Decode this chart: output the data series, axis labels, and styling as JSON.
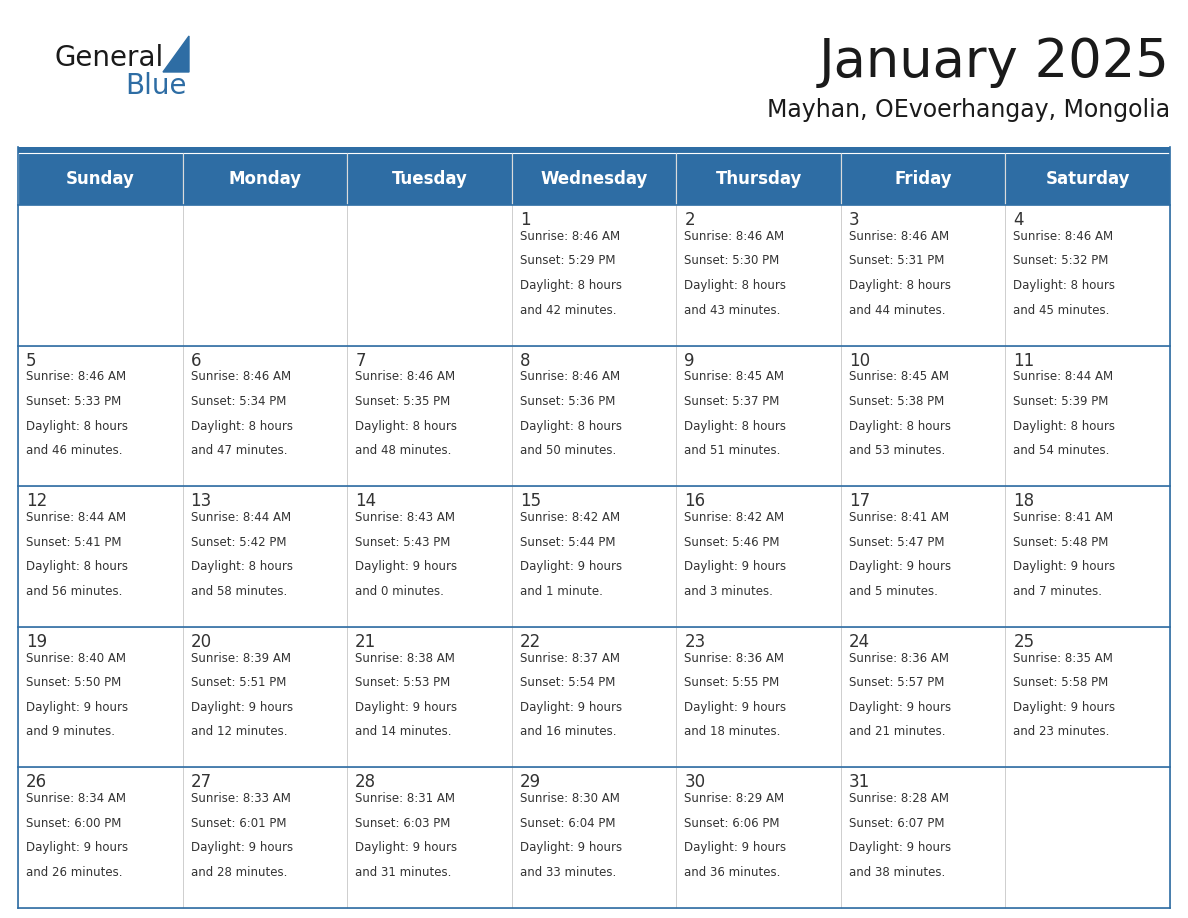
{
  "title": "January 2025",
  "subtitle": "Mayhan, OEvoerhangay, Mongolia",
  "days_of_week": [
    "Sunday",
    "Monday",
    "Tuesday",
    "Wednesday",
    "Thursday",
    "Friday",
    "Saturday"
  ],
  "header_bg": "#2E6DA4",
  "header_text": "#FFFFFF",
  "cell_bg": "#FFFFFF",
  "cell_border_color": "#AAAAAA",
  "row_separator_color": "#2E6DA4",
  "text_color": "#333333",
  "title_color": "#1a1a1a",
  "subtitle_color": "#1a1a1a",
  "logo_text_color": "#1a1a1a",
  "logo_blue_color": "#2E6DA4",
  "divider_color": "#2E6DA4",
  "calendar_data": [
    [
      {
        "day": "",
        "sunrise": "",
        "sunset": "",
        "daylight": ""
      },
      {
        "day": "",
        "sunrise": "",
        "sunset": "",
        "daylight": ""
      },
      {
        "day": "",
        "sunrise": "",
        "sunset": "",
        "daylight": ""
      },
      {
        "day": "1",
        "sunrise": "8:46 AM",
        "sunset": "5:29 PM",
        "daylight_line1": "Daylight: 8 hours",
        "daylight_line2": "and 42 minutes."
      },
      {
        "day": "2",
        "sunrise": "8:46 AM",
        "sunset": "5:30 PM",
        "daylight_line1": "Daylight: 8 hours",
        "daylight_line2": "and 43 minutes."
      },
      {
        "day": "3",
        "sunrise": "8:46 AM",
        "sunset": "5:31 PM",
        "daylight_line1": "Daylight: 8 hours",
        "daylight_line2": "and 44 minutes."
      },
      {
        "day": "4",
        "sunrise": "8:46 AM",
        "sunset": "5:32 PM",
        "daylight_line1": "Daylight: 8 hours",
        "daylight_line2": "and 45 minutes."
      }
    ],
    [
      {
        "day": "5",
        "sunrise": "8:46 AM",
        "sunset": "5:33 PM",
        "daylight_line1": "Daylight: 8 hours",
        "daylight_line2": "and 46 minutes."
      },
      {
        "day": "6",
        "sunrise": "8:46 AM",
        "sunset": "5:34 PM",
        "daylight_line1": "Daylight: 8 hours",
        "daylight_line2": "and 47 minutes."
      },
      {
        "day": "7",
        "sunrise": "8:46 AM",
        "sunset": "5:35 PM",
        "daylight_line1": "Daylight: 8 hours",
        "daylight_line2": "and 48 minutes."
      },
      {
        "day": "8",
        "sunrise": "8:46 AM",
        "sunset": "5:36 PM",
        "daylight_line1": "Daylight: 8 hours",
        "daylight_line2": "and 50 minutes."
      },
      {
        "day": "9",
        "sunrise": "8:45 AM",
        "sunset": "5:37 PM",
        "daylight_line1": "Daylight: 8 hours",
        "daylight_line2": "and 51 minutes."
      },
      {
        "day": "10",
        "sunrise": "8:45 AM",
        "sunset": "5:38 PM",
        "daylight_line1": "Daylight: 8 hours",
        "daylight_line2": "and 53 minutes."
      },
      {
        "day": "11",
        "sunrise": "8:44 AM",
        "sunset": "5:39 PM",
        "daylight_line1": "Daylight: 8 hours",
        "daylight_line2": "and 54 minutes."
      }
    ],
    [
      {
        "day": "12",
        "sunrise": "8:44 AM",
        "sunset": "5:41 PM",
        "daylight_line1": "Daylight: 8 hours",
        "daylight_line2": "and 56 minutes."
      },
      {
        "day": "13",
        "sunrise": "8:44 AM",
        "sunset": "5:42 PM",
        "daylight_line1": "Daylight: 8 hours",
        "daylight_line2": "and 58 minutes."
      },
      {
        "day": "14",
        "sunrise": "8:43 AM",
        "sunset": "5:43 PM",
        "daylight_line1": "Daylight: 9 hours",
        "daylight_line2": "and 0 minutes."
      },
      {
        "day": "15",
        "sunrise": "8:42 AM",
        "sunset": "5:44 PM",
        "daylight_line1": "Daylight: 9 hours",
        "daylight_line2": "and 1 minute."
      },
      {
        "day": "16",
        "sunrise": "8:42 AM",
        "sunset": "5:46 PM",
        "daylight_line1": "Daylight: 9 hours",
        "daylight_line2": "and 3 minutes."
      },
      {
        "day": "17",
        "sunrise": "8:41 AM",
        "sunset": "5:47 PM",
        "daylight_line1": "Daylight: 9 hours",
        "daylight_line2": "and 5 minutes."
      },
      {
        "day": "18",
        "sunrise": "8:41 AM",
        "sunset": "5:48 PM",
        "daylight_line1": "Daylight: 9 hours",
        "daylight_line2": "and 7 minutes."
      }
    ],
    [
      {
        "day": "19",
        "sunrise": "8:40 AM",
        "sunset": "5:50 PM",
        "daylight_line1": "Daylight: 9 hours",
        "daylight_line2": "and 9 minutes."
      },
      {
        "day": "20",
        "sunrise": "8:39 AM",
        "sunset": "5:51 PM",
        "daylight_line1": "Daylight: 9 hours",
        "daylight_line2": "and 12 minutes."
      },
      {
        "day": "21",
        "sunrise": "8:38 AM",
        "sunset": "5:53 PM",
        "daylight_line1": "Daylight: 9 hours",
        "daylight_line2": "and 14 minutes."
      },
      {
        "day": "22",
        "sunrise": "8:37 AM",
        "sunset": "5:54 PM",
        "daylight_line1": "Daylight: 9 hours",
        "daylight_line2": "and 16 minutes."
      },
      {
        "day": "23",
        "sunrise": "8:36 AM",
        "sunset": "5:55 PM",
        "daylight_line1": "Daylight: 9 hours",
        "daylight_line2": "and 18 minutes."
      },
      {
        "day": "24",
        "sunrise": "8:36 AM",
        "sunset": "5:57 PM",
        "daylight_line1": "Daylight: 9 hours",
        "daylight_line2": "and 21 minutes."
      },
      {
        "day": "25",
        "sunrise": "8:35 AM",
        "sunset": "5:58 PM",
        "daylight_line1": "Daylight: 9 hours",
        "daylight_line2": "and 23 minutes."
      }
    ],
    [
      {
        "day": "26",
        "sunrise": "8:34 AM",
        "sunset": "6:00 PM",
        "daylight_line1": "Daylight: 9 hours",
        "daylight_line2": "and 26 minutes."
      },
      {
        "day": "27",
        "sunrise": "8:33 AM",
        "sunset": "6:01 PM",
        "daylight_line1": "Daylight: 9 hours",
        "daylight_line2": "and 28 minutes."
      },
      {
        "day": "28",
        "sunrise": "8:31 AM",
        "sunset": "6:03 PM",
        "daylight_line1": "Daylight: 9 hours",
        "daylight_line2": "and 31 minutes."
      },
      {
        "day": "29",
        "sunrise": "8:30 AM",
        "sunset": "6:04 PM",
        "daylight_line1": "Daylight: 9 hours",
        "daylight_line2": "and 33 minutes."
      },
      {
        "day": "30",
        "sunrise": "8:29 AM",
        "sunset": "6:06 PM",
        "daylight_line1": "Daylight: 9 hours",
        "daylight_line2": "and 36 minutes."
      },
      {
        "day": "31",
        "sunrise": "8:28 AM",
        "sunset": "6:07 PM",
        "daylight_line1": "Daylight: 9 hours",
        "daylight_line2": "and 38 minutes."
      },
      {
        "day": "",
        "sunrise": "",
        "sunset": "",
        "daylight_line1": "",
        "daylight_line2": ""
      }
    ]
  ]
}
